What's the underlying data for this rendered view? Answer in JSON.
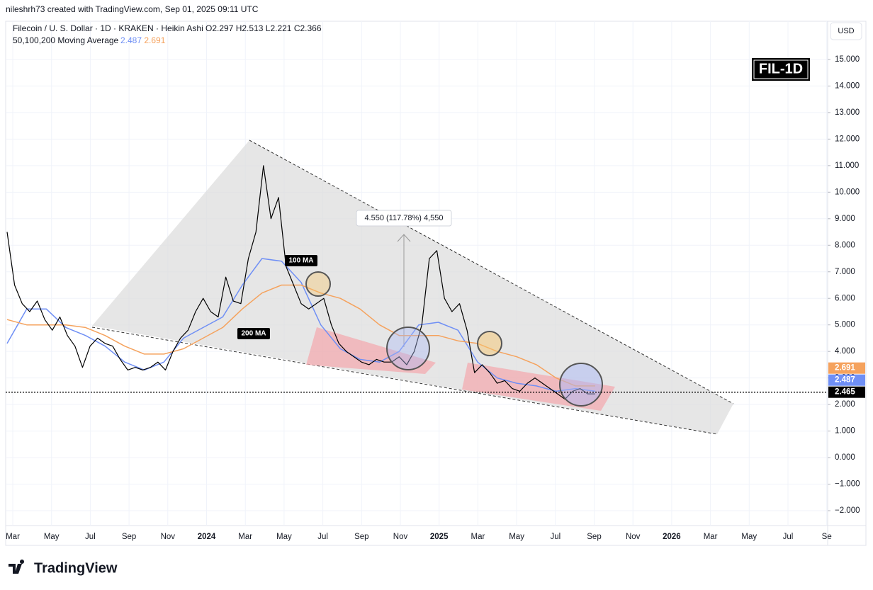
{
  "header": {
    "credit": "nileshrh73 created with TradingView.com, Sep 01, 2025 09:11 UTC"
  },
  "footer": {
    "brand": "TradingView"
  },
  "chart_data": {
    "type": "line",
    "title": "Filecoin / U. S. Dollar · 1D · KRAKEN · Heikin Ashi",
    "ohlc": [
      "O2.297",
      "H2.513",
      "L2.221",
      "C2.366"
    ],
    "indicator": "50,100,200 Moving Average",
    "currency": "USD",
    "badge": "FIL-1D",
    "annotation": "4.550 (117.78%) 4,550",
    "x_labels": [
      "Mar",
      "May",
      "Jul",
      "Sep",
      "Nov",
      "2024",
      "Mar",
      "May",
      "Jul",
      "Sep",
      "Nov",
      "2025",
      "Mar",
      "May",
      "Jul",
      "Sep",
      "Nov",
      "2026",
      "Mar",
      "May",
      "Jul",
      "Se"
    ],
    "ylim": [
      -2.56,
      16.44
    ],
    "yticks": [
      {
        "value": 15,
        "label": "15.000"
      },
      {
        "value": 14,
        "label": "14.000"
      },
      {
        "value": 13,
        "label": "13.000"
      },
      {
        "value": 12,
        "label": "12.000"
      },
      {
        "value": 11,
        "label": "11.000"
      },
      {
        "value": 10,
        "label": "10.000"
      },
      {
        "value": 9,
        "label": "9.000"
      },
      {
        "value": 8,
        "label": "8.000"
      },
      {
        "value": 7,
        "label": "7.000"
      },
      {
        "value": 6,
        "label": "6.000"
      },
      {
        "value": 5,
        "label": "5.000"
      },
      {
        "value": 4,
        "label": "4.000"
      },
      {
        "value": 3,
        "label": "3.000"
      },
      {
        "value": 2,
        "label": "2.000"
      },
      {
        "value": 1,
        "label": "1.000"
      },
      {
        "value": 0,
        "label": "0.000"
      },
      {
        "value": -1,
        "label": "−1.000"
      },
      {
        "value": -2,
        "label": "−2.000"
      }
    ],
    "grid": true,
    "price": {
      "color": "#000000",
      "last": 2.465,
      "values": [
        8.5,
        6.5,
        5.8,
        5.5,
        5.9,
        5.2,
        4.8,
        5.3,
        4.6,
        4.2,
        3.4,
        4.2,
        4.5,
        4.3,
        4.2,
        3.7,
        3.3,
        3.4,
        3.3,
        3.4,
        3.6,
        3.3,
        4.0,
        4.5,
        4.8,
        5.5,
        6.0,
        5.5,
        5.3,
        6.8,
        5.9,
        5.8,
        7.5,
        8.5,
        11.0,
        9.0,
        9.8,
        7.2,
        6.5,
        5.8,
        5.6,
        5.8,
        6.0,
        5.0,
        4.3,
        4.0,
        3.8,
        3.6,
        3.5,
        3.7,
        3.6,
        3.6,
        3.8,
        3.5,
        4.0,
        5.0,
        7.5,
        7.8,
        6.0,
        5.5,
        5.8,
        4.8,
        3.2,
        3.5,
        3.2,
        2.8,
        2.9,
        2.6,
        2.5,
        2.8,
        3.0,
        2.8,
        2.6,
        2.4,
        2.2,
        2.5,
        2.6,
        2.4,
        2.4
      ]
    },
    "series": [
      {
        "name": "100 MA",
        "color": "#6f8ff5",
        "last": 2.487,
        "values": [
          4.3,
          5.6,
          5.6,
          4.9,
          4.6,
          4.2,
          3.6,
          3.3,
          3.6,
          4.5,
          4.9,
          5.3,
          6.5,
          7.5,
          7.4,
          6.6,
          5.0,
          4.1,
          3.7,
          3.6,
          4.0,
          5.0,
          5.1,
          4.8,
          3.6,
          3.0,
          2.8,
          2.7,
          2.5,
          2.6,
          2.5
        ]
      },
      {
        "name": "200 MA",
        "color": "#f5a25d",
        "last": 2.691,
        "values": [
          5.2,
          5.0,
          5.0,
          5.0,
          4.9,
          4.6,
          4.2,
          3.9,
          3.9,
          4.1,
          4.5,
          4.9,
          5.6,
          6.2,
          6.5,
          6.5,
          6.2,
          6.0,
          5.6,
          5.0,
          4.6,
          4.6,
          4.6,
          4.4,
          4.3,
          4.0,
          3.8,
          3.5,
          3.0,
          2.7,
          2.7
        ]
      }
    ]
  }
}
